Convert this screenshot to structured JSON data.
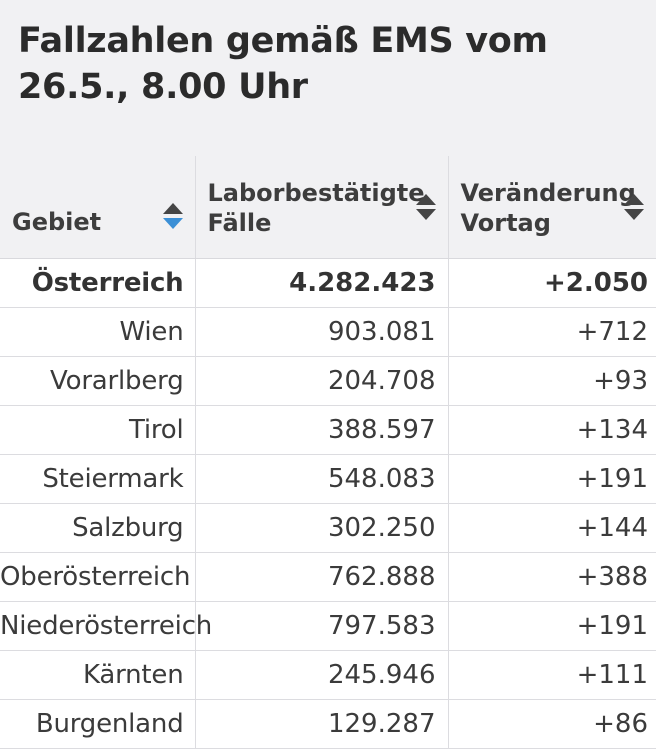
{
  "title": "Fallzahlen gemäß EMS vom 26.5., 8.00 Uhr",
  "chart_data": {
    "type": "table",
    "title": "Fallzahlen gemäß EMS vom 26.5., 8.00 Uhr",
    "columns": [
      "Gebiet",
      "Laborbestätigte Fälle",
      "Veränderung Vortag"
    ],
    "sorted_column": "Gebiet",
    "sort_direction": "descending",
    "rows": [
      {
        "gebiet": "Österreich",
        "faelle": "4.282.423",
        "veraenderung": "+2.050",
        "total": true
      },
      {
        "gebiet": "Wien",
        "faelle": "903.081",
        "veraenderung": "+712"
      },
      {
        "gebiet": "Vorarlberg",
        "faelle": "204.708",
        "veraenderung": "+93"
      },
      {
        "gebiet": "Tirol",
        "faelle": "388.597",
        "veraenderung": "+134"
      },
      {
        "gebiet": "Steiermark",
        "faelle": "548.083",
        "veraenderung": "+191"
      },
      {
        "gebiet": "Salzburg",
        "faelle": "302.250",
        "veraenderung": "+144"
      },
      {
        "gebiet": "Oberösterreich",
        "faelle": "762.888",
        "veraenderung": "+388"
      },
      {
        "gebiet": "Niederösterreich",
        "faelle": "797.583",
        "veraenderung": "+191"
      },
      {
        "gebiet": "Kärnten",
        "faelle": "245.946",
        "veraenderung": "+111"
      },
      {
        "gebiet": "Burgenland",
        "faelle": "129.287",
        "veraenderung": "+86"
      }
    ]
  },
  "colors": {
    "header_bg": "#f1f1f3",
    "sort_active": "#3b8fd6",
    "sort_inactive": "#454545",
    "text": "#3b3b3b"
  },
  "icons": {
    "sort_active": "sort-descending-icon",
    "sort_inactive": "sort-icon"
  }
}
